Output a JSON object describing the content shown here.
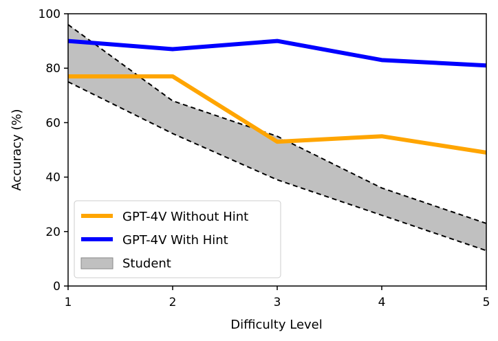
{
  "chart_data": {
    "type": "line",
    "xlabel": "Difficulty Level",
    "ylabel": "Accuracy (%)",
    "xlim": [
      1,
      5
    ],
    "ylim": [
      0,
      100
    ],
    "xticks": [
      1,
      2,
      3,
      4,
      5
    ],
    "yticks": [
      0,
      20,
      40,
      60,
      80,
      100
    ],
    "x": [
      1,
      2,
      3,
      4,
      5
    ],
    "grid": false,
    "legend_position": "lower-left",
    "series": [
      {
        "name": "GPT-4V Without Hint",
        "values": [
          77,
          77,
          53,
          55,
          49
        ],
        "color": "#FFA500"
      },
      {
        "name": "GPT-4V With Hint",
        "values": [
          90,
          87,
          90,
          83,
          81
        ],
        "color": "#0000FF"
      }
    ],
    "band": {
      "name": "Student",
      "upper": [
        96,
        68,
        55,
        36,
        23
      ],
      "lower": [
        75,
        56,
        39,
        26,
        13
      ],
      "fill": "#C0C0C0",
      "edge": "#000000"
    }
  }
}
